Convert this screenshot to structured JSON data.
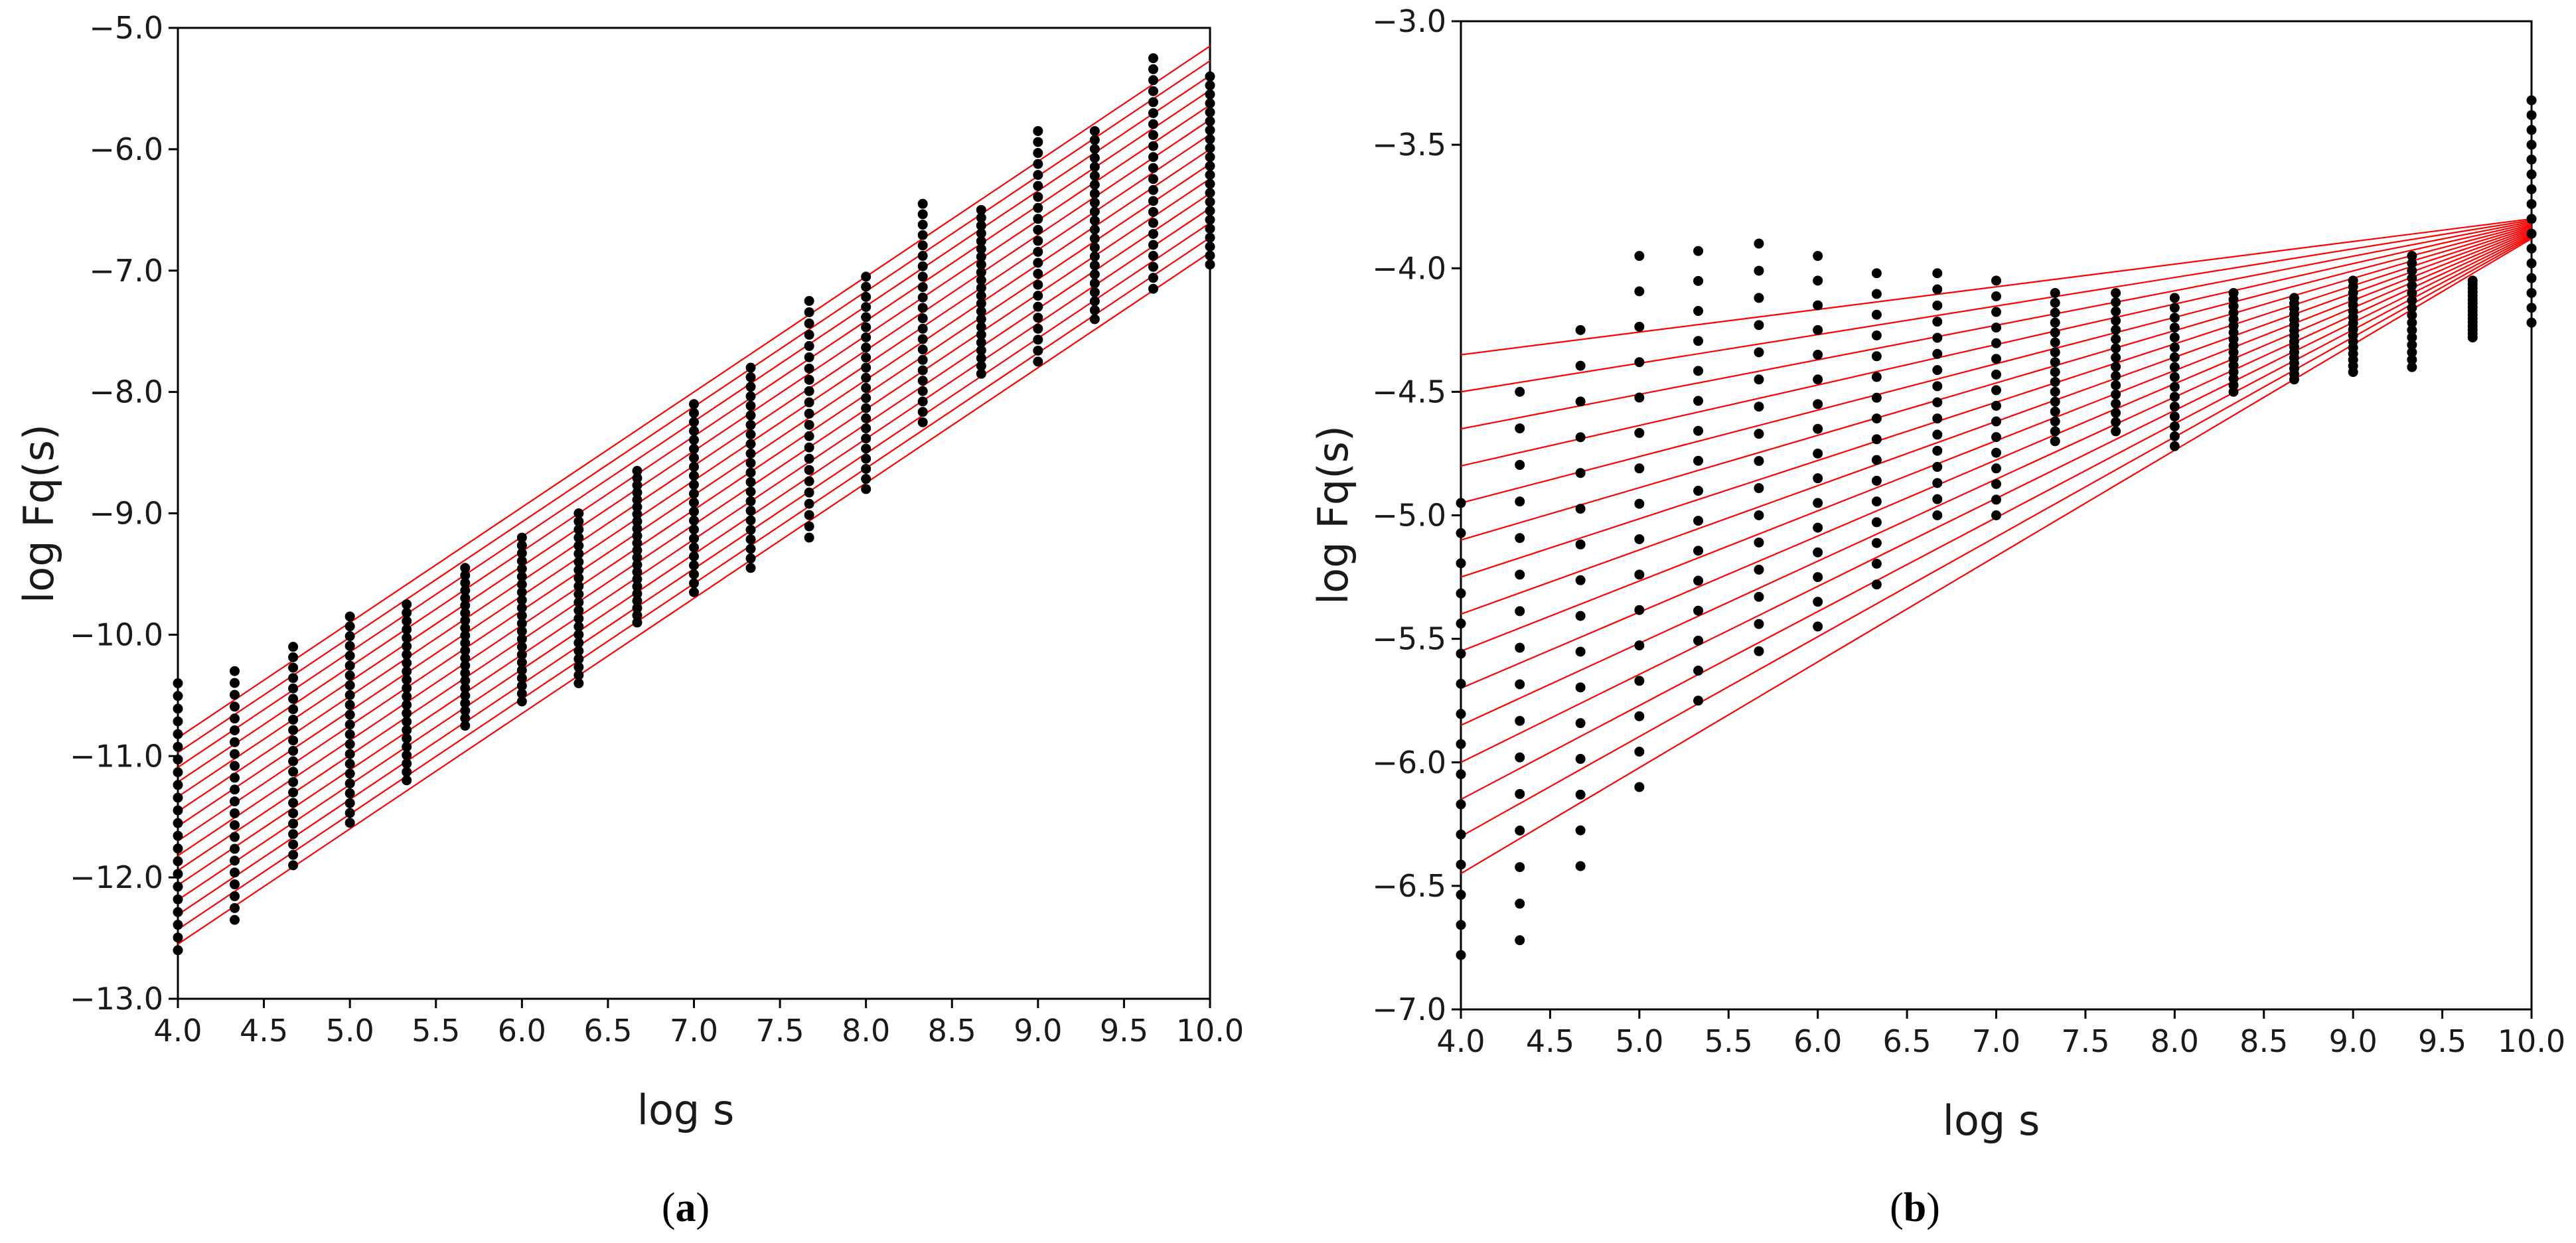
{
  "colors": {
    "fit_line": "#ff0000",
    "point": "#000000",
    "frame": "#000000",
    "background": "#ffffff"
  },
  "chart_data": [
    {
      "id": "a",
      "type": "scatter",
      "title": "",
      "caption_open": "(",
      "caption_letter": "a",
      "caption_close": ")",
      "xlabel": "log s",
      "ylabel": "log Fq(s)",
      "xlim": [
        4.0,
        10.0
      ],
      "ylim": [
        -13.0,
        -5.0
      ],
      "grid": false,
      "xticks": [
        4.0,
        4.5,
        5.0,
        5.5,
        6.0,
        6.5,
        7.0,
        7.5,
        8.0,
        8.5,
        9.0,
        9.5,
        10.0
      ],
      "xtick_labels": [
        "4.0",
        "4.5",
        "5.0",
        "5.5",
        "6.0",
        "6.5",
        "7.0",
        "7.5",
        "8.0",
        "8.5",
        "9.0",
        "9.5",
        "10.0"
      ],
      "yticks": [
        -5.0,
        -6.0,
        -7.0,
        -8.0,
        -9.0,
        -10.0,
        -11.0,
        -12.0,
        -13.0
      ],
      "ytick_labels": [
        "−5.0",
        "−6.0",
        "−7.0",
        "−8.0",
        "−9.0",
        "−10.0",
        "−11.0",
        "−12.0",
        "−13.0"
      ],
      "x": [
        4.0,
        4.33,
        4.67,
        5.0,
        5.33,
        5.67,
        6.0,
        6.33,
        6.67,
        7.0,
        7.33,
        7.67,
        8.0,
        8.33,
        8.67,
        9.0,
        9.33,
        9.67,
        10.0
      ],
      "column_top": [
        -10.4,
        -10.3,
        -10.1,
        -9.85,
        -9.75,
        -9.45,
        -9.2,
        -9.0,
        -8.65,
        -8.1,
        -7.8,
        -7.25,
        -7.05,
        -6.45,
        -6.5,
        -5.85,
        -5.85,
        -5.25,
        -5.4
      ],
      "column_bottom": [
        -12.6,
        -12.35,
        -11.9,
        -11.55,
        -11.2,
        -10.75,
        -10.55,
        -10.4,
        -9.9,
        -9.65,
        -9.45,
        -9.2,
        -8.8,
        -8.25,
        -7.85,
        -7.75,
        -7.4,
        -7.15,
        -6.95
      ],
      "points_per_column": 22,
      "fits": {
        "count": 15,
        "top": {
          "y_at_xmin": -10.85,
          "y_at_xmax": -5.15
        },
        "bottom": {
          "y_at_xmin": -12.55,
          "y_at_xmax": -6.85
        }
      }
    },
    {
      "id": "b",
      "type": "scatter",
      "title": "",
      "caption_open": "(",
      "caption_letter": "b",
      "caption_close": ")",
      "xlabel": "log s",
      "ylabel": "log Fq(s)",
      "xlim": [
        4.0,
        10.0
      ],
      "ylim": [
        -7.0,
        -3.0
      ],
      "grid": false,
      "xticks": [
        4.0,
        4.5,
        5.0,
        5.5,
        6.0,
        6.5,
        7.0,
        7.5,
        8.0,
        8.5,
        9.0,
        9.5,
        10.0
      ],
      "xtick_labels": [
        "4.0",
        "4.5",
        "5.0",
        "5.5",
        "6.0",
        "6.5",
        "7.0",
        "7.5",
        "8.0",
        "8.5",
        "9.0",
        "9.5",
        "10.0"
      ],
      "yticks": [
        -3.0,
        -3.5,
        -4.0,
        -4.5,
        -5.0,
        -5.5,
        -6.0,
        -6.5,
        -7.0
      ],
      "ytick_labels": [
        "−3.0",
        "−3.5",
        "−4.0",
        "−4.5",
        "−5.0",
        "−5.5",
        "−6.0",
        "−6.5",
        "−7.0"
      ],
      "x": [
        4.0,
        4.33,
        4.67,
        5.0,
        5.33,
        5.67,
        6.0,
        6.33,
        6.67,
        7.0,
        7.33,
        7.67,
        8.0,
        8.33,
        8.67,
        9.0,
        9.33,
        9.67,
        10.0
      ],
      "column_top": [
        -4.95,
        -4.5,
        -4.25,
        -3.95,
        -3.93,
        -3.9,
        -3.95,
        -4.02,
        -4.02,
        -4.05,
        -4.1,
        -4.1,
        -4.12,
        -4.1,
        -4.12,
        -4.05,
        -3.95,
        -4.05,
        -3.32
      ],
      "column_bottom": [
        -6.78,
        -6.72,
        -6.42,
        -6.1,
        -5.75,
        -5.55,
        -5.45,
        -5.28,
        -5.0,
        -5.0,
        -4.7,
        -4.66,
        -4.72,
        -4.5,
        -4.45,
        -4.42,
        -4.4,
        -4.28,
        -4.22
      ],
      "points_per_column": 16,
      "fits": {
        "count": 15,
        "top": {
          "y_at_xmin": -4.35,
          "y_at_xmax": -3.8
        },
        "bottom": {
          "y_at_xmin": -6.45,
          "y_at_xmax": -3.88
        }
      }
    }
  ]
}
